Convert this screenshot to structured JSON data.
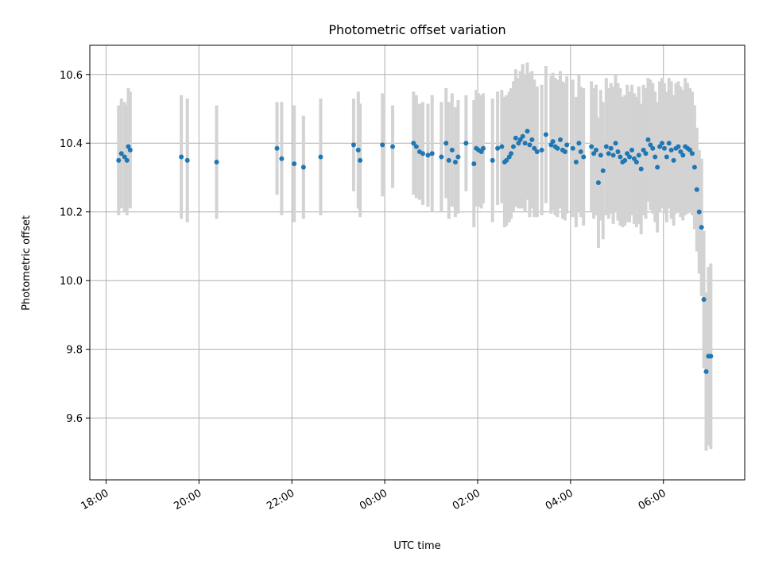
{
  "chart_data": {
    "type": "scatter",
    "title": "Photometric offset variation",
    "xlabel": "UTC time",
    "ylabel": "Photometric offset",
    "x_tick_labels": [
      "18:00",
      "20:00",
      "22:00",
      "00:00",
      "02:00",
      "04:00",
      "06:00"
    ],
    "x_ticks_hours": [
      18,
      20,
      22,
      24,
      26,
      28,
      30
    ],
    "y_tick_labels": [
      "9.6",
      "9.8",
      "10.0",
      "10.2",
      "10.4",
      "10.6"
    ],
    "y_ticks": [
      9.6,
      9.8,
      10.0,
      10.2,
      10.4,
      10.6
    ],
    "xlim_hours": [
      17.65,
      31.75
    ],
    "ylim": [
      9.42,
      10.685
    ],
    "grid": true,
    "colors": {
      "points": "#1f77b4",
      "error_bars": "#d3d3d3"
    },
    "series": [
      {
        "x_hours": [
          18.27,
          18.33,
          18.4,
          18.45,
          18.48,
          18.52,
          19.62,
          19.75,
          20.38,
          21.68,
          21.78,
          22.05,
          22.25,
          22.62,
          23.33,
          23.43,
          23.47,
          23.95,
          24.17,
          24.62,
          24.68,
          24.75,
          24.82,
          24.93,
          25.02,
          25.22,
          25.32,
          25.38,
          25.45,
          25.52,
          25.58,
          25.75,
          25.92,
          25.97,
          26.02,
          26.08,
          26.12,
          26.32,
          26.43,
          26.52,
          26.58,
          26.62,
          26.68,
          26.72,
          26.77,
          26.82,
          26.88,
          26.92,
          26.97,
          27.02,
          27.07,
          27.12,
          27.17,
          27.22,
          27.28,
          27.38,
          27.47,
          27.58,
          27.62,
          27.67,
          27.72,
          27.78,
          27.83,
          27.88,
          27.92,
          28.05,
          28.12,
          28.18,
          28.22,
          28.28,
          28.45,
          28.5,
          28.55,
          28.6,
          28.65,
          28.7,
          28.77,
          28.82,
          28.87,
          28.92,
          28.97,
          29.02,
          29.07,
          29.12,
          29.17,
          29.22,
          29.27,
          29.32,
          29.37,
          29.42,
          29.47,
          29.52,
          29.57,
          29.62,
          29.67,
          29.72,
          29.77,
          29.82,
          29.87,
          29.92,
          29.97,
          30.02,
          30.07,
          30.12,
          30.17,
          30.22,
          30.27,
          30.32,
          30.37,
          30.42,
          30.47,
          30.52,
          30.57,
          30.62,
          30.67,
          30.72,
          30.77,
          30.82,
          30.87,
          30.92,
          30.97,
          31.02
        ],
        "y": [
          10.35,
          10.37,
          10.36,
          10.35,
          10.39,
          10.38,
          10.36,
          10.35,
          10.345,
          10.385,
          10.355,
          10.34,
          10.33,
          10.36,
          10.395,
          10.38,
          10.35,
          10.395,
          10.39,
          10.4,
          10.39,
          10.375,
          10.37,
          10.365,
          10.37,
          10.36,
          10.4,
          10.35,
          10.38,
          10.345,
          10.36,
          10.4,
          10.34,
          10.385,
          10.38,
          10.375,
          10.385,
          10.35,
          10.385,
          10.39,
          10.345,
          10.35,
          10.36,
          10.37,
          10.39,
          10.415,
          10.4,
          10.41,
          10.42,
          10.4,
          10.435,
          10.395,
          10.41,
          10.385,
          10.375,
          10.38,
          10.425,
          10.395,
          10.405,
          10.39,
          10.385,
          10.41,
          10.38,
          10.375,
          10.395,
          10.385,
          10.345,
          10.4,
          10.375,
          10.36,
          10.39,
          10.37,
          10.38,
          10.285,
          10.365,
          10.32,
          10.39,
          10.37,
          10.385,
          10.365,
          10.4,
          10.375,
          10.36,
          10.345,
          10.35,
          10.37,
          10.36,
          10.38,
          10.355,
          10.345,
          10.365,
          10.325,
          10.38,
          10.37,
          10.41,
          10.395,
          10.385,
          10.36,
          10.33,
          10.39,
          10.4,
          10.385,
          10.36,
          10.4,
          10.38,
          10.35,
          10.385,
          10.39,
          10.375,
          10.365,
          10.39,
          10.385,
          10.38,
          10.37,
          10.33,
          10.265,
          10.2,
          10.155,
          9.945,
          9.735,
          9.78,
          9.78
        ],
        "yerr": [
          0.16,
          0.16,
          0.16,
          0.16,
          0.17,
          0.17,
          0.18,
          0.18,
          0.165,
          0.135,
          0.165,
          0.17,
          0.15,
          0.17,
          0.135,
          0.17,
          0.165,
          0.15,
          0.12,
          0.15,
          0.15,
          0.14,
          0.15,
          0.15,
          0.17,
          0.16,
          0.16,
          0.17,
          0.165,
          0.16,
          0.165,
          0.14,
          0.185,
          0.17,
          0.165,
          0.165,
          0.16,
          0.18,
          0.165,
          0.165,
          0.19,
          0.19,
          0.19,
          0.19,
          0.19,
          0.2,
          0.19,
          0.2,
          0.21,
          0.2,
          0.2,
          0.21,
          0.2,
          0.2,
          0.19,
          0.19,
          0.2,
          0.2,
          0.2,
          0.2,
          0.2,
          0.2,
          0.2,
          0.2,
          0.2,
          0.2,
          0.19,
          0.2,
          0.19,
          0.2,
          0.19,
          0.19,
          0.19,
          0.19,
          0.19,
          0.2,
          0.2,
          0.19,
          0.19,
          0.2,
          0.2,
          0.2,
          0.2,
          0.19,
          0.19,
          0.2,
          0.19,
          0.19,
          0.19,
          0.19,
          0.2,
          0.19,
          0.19,
          0.19,
          0.18,
          0.19,
          0.19,
          0.19,
          0.19,
          0.19,
          0.19,
          0.19,
          0.19,
          0.19,
          0.2,
          0.19,
          0.19,
          0.19,
          0.19,
          0.19,
          0.2,
          0.19,
          0.18,
          0.18,
          0.18,
          0.18,
          0.18,
          0.2,
          0.2,
          0.23,
          0.26,
          0.27
        ]
      }
    ]
  }
}
